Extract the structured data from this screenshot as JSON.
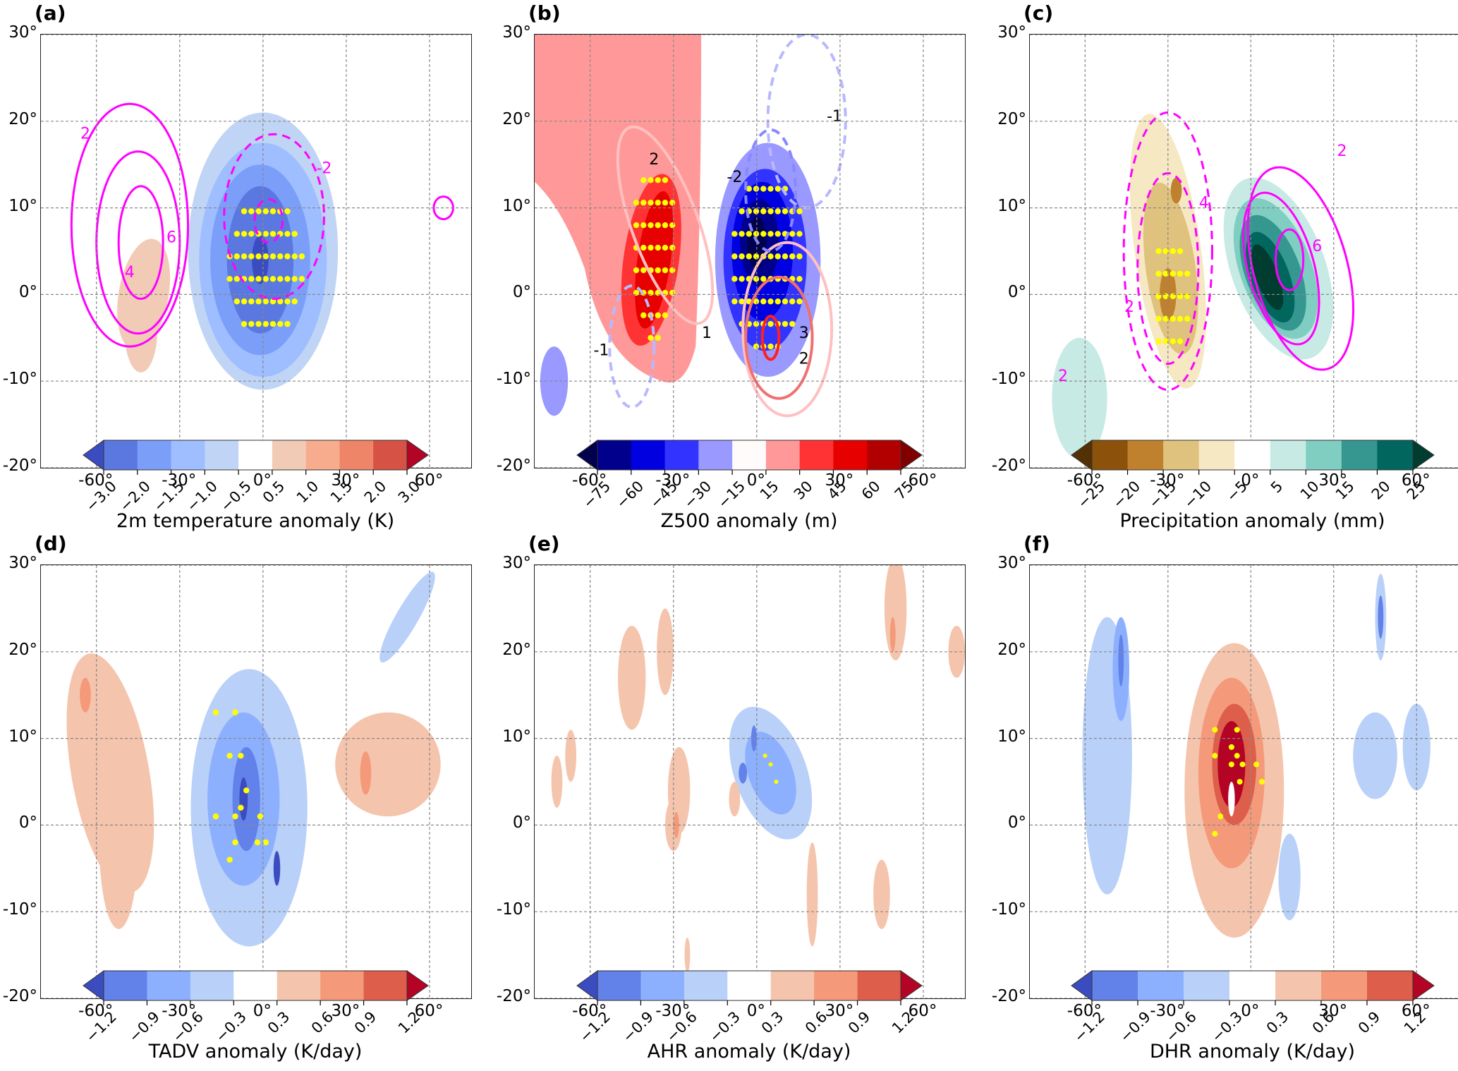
{
  "chart_data": [
    {
      "id": "a",
      "panel_label": "(a)",
      "type": "heatmap",
      "title": "",
      "xlabel": "",
      "ylabel": "",
      "xlim": [
        -80,
        75
      ],
      "ylim": [
        -20,
        30
      ],
      "x_ticks": [
        -60,
        -30,
        0,
        30,
        60
      ],
      "x_tick_labels": [
        "-60°",
        "-30°",
        "0°",
        "30°",
        "60°"
      ],
      "y_ticks": [
        -20,
        -10,
        0,
        10,
        20,
        30
      ],
      "y_tick_labels": [
        "-20°",
        "-10°",
        "0°",
        "10°",
        "20°",
        "30°"
      ],
      "grid": true,
      "colorbar": {
        "label": "2m temperature anomaly (K)",
        "levels": [
          -3.0,
          -2.0,
          -1.5,
          -1.0,
          -0.5,
          0.5,
          1.0,
          1.5,
          2.0,
          3.0
        ],
        "tick_labels": [
          "−3.0",
          "−2.0",
          "−1.5",
          "−1.0",
          "−0.5",
          "0.5",
          "1.0",
          "1.5",
          "2.0",
          "3.0"
        ],
        "colors": [
          "#3b4cc0",
          "#5a78e0",
          "#7b9ff9",
          "#9ebeff",
          "#c0d4f5",
          "#ffffff",
          "#f2cbb7",
          "#f7ac8e",
          "#ee8468",
          "#d65244",
          "#b40426"
        ],
        "extend": "both"
      },
      "filled_features": [
        {
          "name": "cold anomaly",
          "center": [
            -1,
            4
          ],
          "max_level": -2.0,
          "extent_lon": [
            -25,
            28
          ],
          "extent_lat": [
            -11,
            21
          ]
        },
        {
          "name": "warm anomaly",
          "center": [
            -42,
            2
          ],
          "level": 0.5,
          "extent_lon": [
            -56,
            -34
          ],
          "extent_lat": [
            -8,
            7
          ]
        }
      ],
      "contours": {
        "color": "#ff00ff",
        "labels": [
          "2",
          "4",
          "6",
          "-2",
          "-2"
        ]
      },
      "stippling": {
        "color": "#ffff00",
        "region_lon": [
          -10,
          14
        ],
        "region_lat": [
          -5,
          10
        ]
      }
    },
    {
      "id": "b",
      "panel_label": "(b)",
      "type": "heatmap",
      "xlim": [
        -80,
        75
      ],
      "ylim": [
        -20,
        30
      ],
      "x_ticks": [
        -60,
        -30,
        0,
        30,
        60
      ],
      "x_tick_labels": [
        "-60°",
        "-30°",
        "0°",
        "30°",
        "60°"
      ],
      "y_ticks": [
        -20,
        -10,
        0,
        10,
        20,
        30
      ],
      "y_tick_labels": [
        "-20°",
        "-10°",
        "0°",
        "10°",
        "20°",
        "30°"
      ],
      "grid": true,
      "colorbar": {
        "label": "Z500 anomaly (m)",
        "levels": [
          -75,
          -60,
          -45,
          -30,
          -15,
          15,
          30,
          45,
          60,
          75
        ],
        "tick_labels": [
          "−75",
          "−60",
          "−45",
          "−30",
          "−15",
          "15",
          "30",
          "45",
          "60",
          "75"
        ],
        "colors": [
          "#00004c",
          "#00008d",
          "#0000e0",
          "#3333ff",
          "#9999ff",
          "#fffbfb",
          "#ff9999",
          "#ff3333",
          "#e60000",
          "#b20000",
          "#800000"
        ],
        "extend": "both"
      },
      "filled_features": [
        {
          "name": "positive Z500",
          "center": [
            -38,
            5
          ],
          "max_level": 60,
          "extent_lon": [
            -80,
            -22
          ],
          "extent_lat": [
            -10,
            30
          ]
        },
        {
          "name": "negative Z500",
          "center": [
            1,
            5
          ],
          "max_level": -75,
          "extent_lon": [
            -12,
            32
          ],
          "extent_lat": [
            -10,
            20
          ]
        },
        {
          "name": "small negative",
          "center": [
            -73,
            -10
          ],
          "level": -15
        }
      ],
      "contours": {
        "labels": [
          "2",
          "1",
          "3",
          "2",
          "-1",
          "-2",
          "-1"
        ]
      },
      "stippling": {
        "color": "#ffff00"
      }
    },
    {
      "id": "c",
      "panel_label": "(c)",
      "type": "heatmap",
      "xlim": [
        -80,
        75
      ],
      "ylim": [
        -20,
        30
      ],
      "x_ticks": [
        -60,
        -30,
        0,
        30,
        60
      ],
      "x_tick_labels": [
        "-60°",
        "-30°",
        "0°",
        "30°",
        "60°"
      ],
      "y_ticks": [
        -20,
        -10,
        0,
        10,
        20,
        30
      ],
      "y_tick_labels": [
        "-20°",
        "-10°",
        "0°",
        "10°",
        "20°",
        "30°"
      ],
      "grid": true,
      "colorbar": {
        "label": "Precipitation anomaly (mm)",
        "levels": [
          -25,
          -20,
          -15,
          -10,
          -5,
          5,
          10,
          15,
          20,
          25
        ],
        "tick_labels": [
          "−25",
          "−20",
          "−15",
          "−10",
          "−5",
          "5",
          "10",
          "15",
          "20",
          "25"
        ],
        "colors": [
          "#543005",
          "#8c510a",
          "#bf812d",
          "#dfc27d",
          "#f6e8c3",
          "#ffffff",
          "#c7eae5",
          "#80cdc1",
          "#35978f",
          "#01665e",
          "#003c30"
        ],
        "extend": "both"
      },
      "filled_features": [
        {
          "name": "dry anomaly",
          "center": [
            -30,
            3
          ],
          "max_level": -20,
          "extent_lon": [
            -49,
            -12
          ],
          "extent_lat": [
            -10,
            22
          ]
        },
        {
          "name": "wet anomaly",
          "center": [
            8,
            2
          ],
          "max_level": 25,
          "extent_lon": [
            -12,
            36
          ],
          "extent_lat": [
            -9,
            15
          ]
        }
      ],
      "contours": {
        "color": "#ff00ff",
        "labels": [
          "2",
          "4",
          "6",
          "4",
          "2",
          "2",
          "2"
        ]
      },
      "stippling": {
        "color": "#ffff00"
      }
    },
    {
      "id": "d",
      "panel_label": "(d)",
      "type": "heatmap",
      "xlim": [
        -80,
        75
      ],
      "ylim": [
        -20,
        30
      ],
      "x_ticks": [
        -60,
        -30,
        0,
        30,
        60
      ],
      "x_tick_labels": [
        "-60°",
        "-30°",
        "0°",
        "30°",
        "60°"
      ],
      "y_ticks": [
        -20,
        -10,
        0,
        10,
        20,
        30
      ],
      "y_tick_labels": [
        "-20°",
        "-10°",
        "0°",
        "10°",
        "20°",
        "30°"
      ],
      "grid": true,
      "colorbar": {
        "label": "TADV anomaly (K/day)",
        "levels": [
          -1.2,
          -0.9,
          -0.6,
          -0.3,
          0.3,
          0.6,
          0.9,
          1.2
        ],
        "tick_labels": [
          "−1.2",
          "−0.9",
          "−0.6",
          "−0.3",
          "0.3",
          "0.6",
          "0.9",
          "1.2"
        ],
        "colors": [
          "#3b4cc0",
          "#6282ea",
          "#8db0fe",
          "#b9d0f9",
          "#ffffff",
          "#f5c4ac",
          "#f49a7b",
          "#dd5f4b",
          "#b40426"
        ],
        "extend": "both"
      },
      "filled_features": [
        {
          "name": "negative TADV",
          "center": [
            -5,
            3
          ],
          "max_level": -1.2,
          "extent_lon": [
            -30,
            15
          ],
          "extent_lat": [
            -18,
            22
          ]
        },
        {
          "name": "positive TADV west",
          "center": [
            -55,
            5
          ],
          "level": 0.3,
          "extent_lon": [
            -80,
            -38
          ],
          "extent_lat": [
            -12,
            25
          ]
        },
        {
          "name": "positive TADV east",
          "center": [
            42,
            5
          ],
          "level": 0.3,
          "extent_lon": [
            25,
            75
          ],
          "extent_lat": [
            -4,
            15
          ]
        }
      ],
      "stippling": {
        "color": "#ffff00"
      }
    },
    {
      "id": "e",
      "panel_label": "(e)",
      "type": "heatmap",
      "xlim": [
        -80,
        75
      ],
      "ylim": [
        -20,
        30
      ],
      "x_ticks": [
        -60,
        -30,
        0,
        30,
        60
      ],
      "x_tick_labels": [
        "-60°",
        "-30°",
        "0°",
        "30°",
        "60°"
      ],
      "y_ticks": [
        -20,
        -10,
        0,
        10,
        20,
        30
      ],
      "y_tick_labels": [
        "-20°",
        "-10°",
        "0°",
        "10°",
        "20°",
        "30°"
      ],
      "grid": true,
      "colorbar": {
        "label": "AHR anomaly (K/day)",
        "levels": [
          -1.2,
          -0.9,
          -0.6,
          -0.3,
          0.3,
          0.6,
          0.9,
          1.2
        ],
        "tick_labels": [
          "−1.2",
          "−0.9",
          "−0.6",
          "−0.3",
          "0.3",
          "0.6",
          "0.9",
          "1.2"
        ],
        "colors": [
          "#3b4cc0",
          "#6282ea",
          "#8db0fe",
          "#b9d0f9",
          "#ffffff",
          "#f5c4ac",
          "#f49a7b",
          "#dd5f4b",
          "#b40426"
        ],
        "extend": "both"
      },
      "filled_features": [
        {
          "name": "negative AHR",
          "center": [
            5,
            6
          ],
          "max_level": -0.9,
          "extent_lon": [
            -17,
            28
          ],
          "extent_lat": [
            -8,
            16
          ]
        },
        {
          "name": "positive AHR streaks",
          "level": 0.3
        }
      ],
      "stippling": {
        "color": "#ffff00"
      }
    },
    {
      "id": "f",
      "panel_label": "(f)",
      "type": "heatmap",
      "xlim": [
        -80,
        75
      ],
      "ylim": [
        -20,
        30
      ],
      "x_ticks": [
        -60,
        -30,
        0,
        30,
        60
      ],
      "x_tick_labels": [
        "-60°",
        "-30°",
        "0°",
        "30°",
        "60°"
      ],
      "y_ticks": [
        -20,
        -10,
        0,
        10,
        20,
        30
      ],
      "y_tick_labels": [
        "-20°",
        "-10°",
        "0°",
        "10°",
        "20°",
        "30°"
      ],
      "grid": true,
      "colorbar": {
        "label": "DHR anomaly (K/day)",
        "levels": [
          -1.2,
          -0.9,
          -0.6,
          -0.3,
          0.3,
          0.6,
          0.9,
          1.2
        ],
        "tick_labels": [
          "−1.2",
          "−0.9",
          "−0.6",
          "−0.3",
          "0.3",
          "0.6",
          "0.9",
          "1.2"
        ],
        "colors": [
          "#3b4cc0",
          "#6282ea",
          "#8db0fe",
          "#b9d0f9",
          "#ffffff",
          "#f5c4ac",
          "#f49a7b",
          "#dd5f4b",
          "#b40426"
        ],
        "extend": "both"
      },
      "filled_features": [
        {
          "name": "positive DHR",
          "center": [
            -7,
            6
          ],
          "max_level": 1.2,
          "extent_lon": [
            -30,
            22
          ],
          "extent_lat": [
            -16,
            22
          ]
        },
        {
          "name": "negative DHR west",
          "center": [
            -55,
            5
          ],
          "level": -0.3,
          "extent_lon": [
            -75,
            -35
          ],
          "extent_lat": [
            -8,
            28
          ]
        },
        {
          "name": "negative DHR east",
          "center": [
            45,
            5
          ],
          "level": -0.3,
          "extent_lon": [
            30,
            70
          ],
          "extent_lat": [
            0,
            15
          ]
        }
      ],
      "stippling": {
        "color": "#ffff00"
      }
    }
  ]
}
